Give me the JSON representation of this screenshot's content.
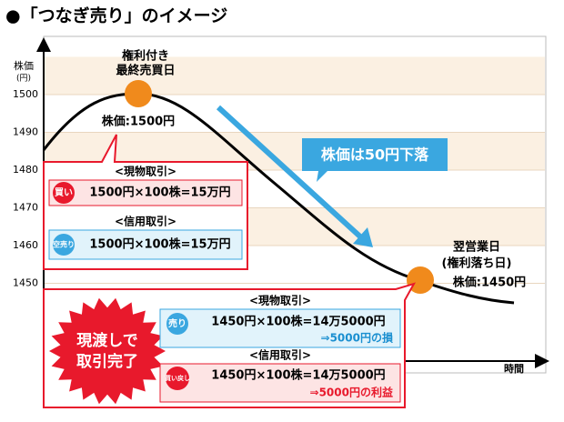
{
  "title": "●「つなぎ売り」のイメージ",
  "y_axis_label": [
    "株価",
    "(円)"
  ],
  "y_ticks": [
    1500,
    1490,
    1480,
    1470,
    1460,
    1450
  ],
  "x_axis_label": "時間",
  "peak": {
    "label": [
      "権利付き",
      "最終売買日"
    ],
    "price": "株価:1500円"
  },
  "drop_callout": "株価は50円下落",
  "next_day": {
    "label": [
      "翌営業日",
      "(権利落ち日)"
    ],
    "price": "株価:1450円"
  },
  "entry": {
    "spot": {
      "header": "<現物取引>",
      "badge": "買い",
      "formula": "1500円×100株=15万円"
    },
    "margin": {
      "header": "<信用取引>",
      "badge": "空売り",
      "formula": "1500円×100株=15万円"
    }
  },
  "settlement": {
    "burst": [
      "現渡しで",
      "取引完了"
    ],
    "spot": {
      "header": "<現物取引>",
      "badge": "売り",
      "formula": "1450円×100株=14万5000円",
      "result": "⇒5000円の損"
    },
    "margin": {
      "header": "<信用取引>",
      "badge": "買い戻し",
      "formula": "1450円×100株=14万5000円",
      "result": "⇒5000円の利益"
    }
  }
}
